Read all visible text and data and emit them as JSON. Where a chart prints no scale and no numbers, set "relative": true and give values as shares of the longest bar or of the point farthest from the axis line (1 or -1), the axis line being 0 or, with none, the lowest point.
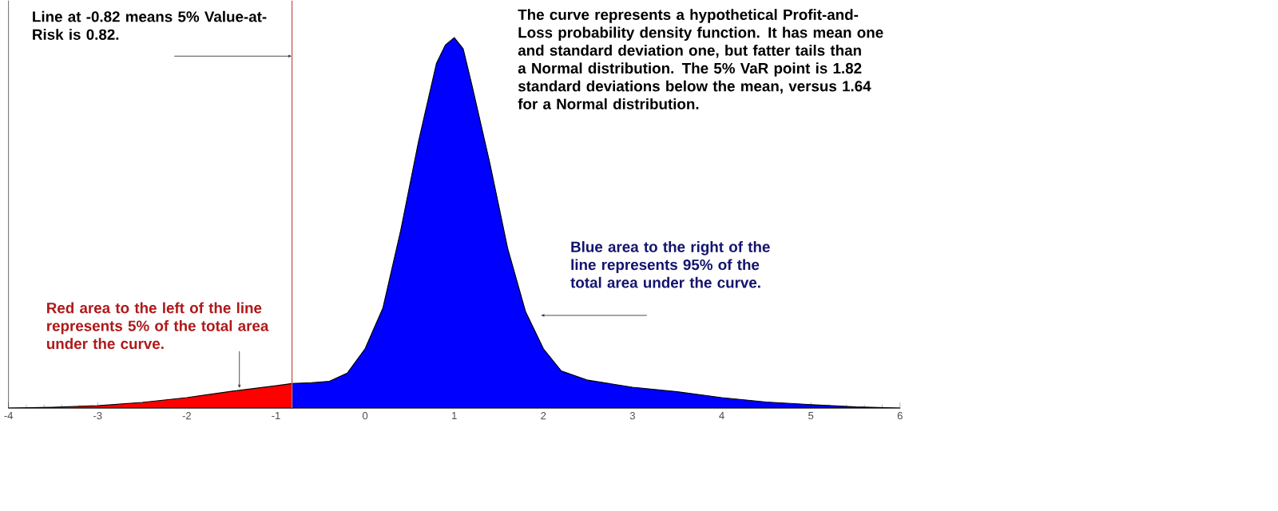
{
  "chart_data": {
    "type": "area",
    "relative": true,
    "xlim": [
      -4,
      6
    ],
    "xticks": [
      -4,
      -3,
      -2,
      -1,
      0,
      1,
      2,
      3,
      4,
      5,
      6
    ],
    "series": [
      {
        "color": "#ff0000",
        "x": [
          -4,
          -3.5,
          -3,
          -2.5,
          -2,
          -1.5,
          -1,
          -0.82
        ],
        "values": [
          0,
          0.002,
          0.006,
          0.015,
          0.028,
          0.045,
          0.06,
          0.066
        ]
      },
      {
        "color": "#0000ff",
        "x": [
          -0.82,
          -0.6,
          -0.4,
          -0.2,
          0,
          0.2,
          0.4,
          0.6,
          0.8,
          0.9,
          1,
          1.1,
          1.2,
          1.4,
          1.6,
          1.8,
          2,
          2.2,
          2.5,
          3,
          3.5,
          4,
          4.5,
          5,
          5.5,
          6
        ],
        "values": [
          0.066,
          0.068,
          0.072,
          0.094,
          0.16,
          0.27,
          0.48,
          0.72,
          0.93,
          0.98,
          1,
          0.97,
          0.87,
          0.66,
          0.43,
          0.26,
          0.16,
          0.1,
          0.075,
          0.056,
          0.044,
          0.028,
          0.016,
          0.009,
          0.003,
          0
        ]
      }
    ],
    "ref_lines": [
      {
        "axis": "x",
        "value": -0.82,
        "color": "#c86464"
      }
    ],
    "annotations": [
      {
        "text": "Line at -0.82 means 5% Value-at-Risk is 0.82.",
        "x": -0.82,
        "y": 0.95
      },
      "The curve represents a hypothetical Profit-and-Loss probability density function. It has mean one and standard deviation one, but fatter tails than a Normal distribution. The 5% VaR point is 1.82 standard deviations below the mean, versus 1.64 for a Normal distribution.",
      {
        "text": "Blue area to the right of the line represents 95% of the total area under the curve.",
        "x": 1.97,
        "y": 0.25
      },
      {
        "text": "Red area to the left of the line represents 5% of the total area under the curve.",
        "x": -1.41,
        "y": 0.053
      }
    ]
  }
}
